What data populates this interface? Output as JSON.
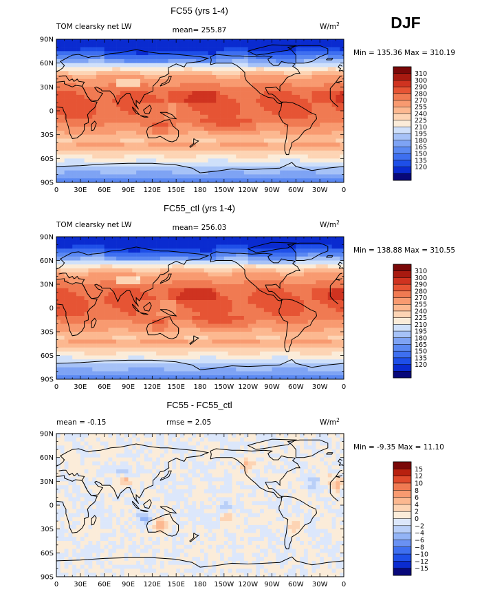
{
  "season": "DJF",
  "units": "W/m",
  "units_exp": "2",
  "lat_labels": [
    "90N",
    "60N",
    "30N",
    "0",
    "30S",
    "60S",
    "90S"
  ],
  "lon_labels": [
    "0",
    "30E",
    "60E",
    "90E",
    "120E",
    "150E",
    "180",
    "150W",
    "120W",
    "90W",
    "60W",
    "30W",
    "0"
  ],
  "colors": {
    "abs": [
      "#08087a",
      "#0a2bd0",
      "#1e4fe8",
      "#3e6ff0",
      "#5a88f2",
      "#7ea3f4",
      "#a6c2f7",
      "#cfe0fa",
      "#fbecd9",
      "#fdd4b4",
      "#fcb890",
      "#f89a70",
      "#f07a52",
      "#e65434",
      "#cf3320",
      "#a81a10",
      "#7a0808"
    ],
    "diff": [
      "#08087a",
      "#0a2bd0",
      "#1e4fe8",
      "#3e6ff0",
      "#6a92f3",
      "#93b4f6",
      "#b9cff8",
      "#dce7fb",
      "#fbecd9",
      "#fdd4b4",
      "#fcb890",
      "#f89a70",
      "#f07a52",
      "#e04a2c",
      "#b8200f",
      "#7a0808"
    ]
  },
  "panels": [
    {
      "title": "FC55 (yrs 1-4)",
      "left_label": "TOM clearsky net LW",
      "center_label": "mean= 255.87",
      "minmax": "Min = 135.36 Max = 310.19",
      "colorbar_labels": [
        "310",
        "300",
        "290",
        "280",
        "270",
        "255",
        "240",
        "225",
        "210",
        "195",
        "180",
        "165",
        "150",
        "135",
        "120"
      ]
    },
    {
      "title": "FC55_ctl (yrs 1-4)",
      "left_label": "TOM clearsky net LW",
      "center_label": "mean= 256.03",
      "minmax": "Min = 138.88 Max = 310.55",
      "colorbar_labels": [
        "310",
        "300",
        "290",
        "280",
        "270",
        "255",
        "240",
        "225",
        "210",
        "195",
        "180",
        "165",
        "150",
        "135",
        "120"
      ]
    },
    {
      "title": "FC55 - FC55_ctl",
      "left_label": "mean =   -0.15",
      "center_label": "rmse =    2.05",
      "minmax": "Min =  -9.35 Max =  11.10",
      "colorbar_labels": [
        "15",
        "12",
        "10",
        "8",
        "6",
        "4",
        "2",
        "0",
        "−2",
        "−4",
        "−6",
        "−8",
        "−10",
        "−12",
        "−15"
      ]
    }
  ],
  "chart_data": [
    {
      "type": "heatmap",
      "title": "FC55 (yrs 1-4)",
      "variable": "TOM clearsky net LW",
      "units": "W/m2",
      "season": "DJF",
      "mean": 255.87,
      "min": 135.36,
      "max": 310.19,
      "x_ticks": [
        "0",
        "30E",
        "60E",
        "90E",
        "120E",
        "150E",
        "180",
        "150W",
        "120W",
        "90W",
        "60W",
        "30W",
        "0"
      ],
      "y_ticks": [
        "90N",
        "60N",
        "30N",
        "0",
        "30S",
        "60S",
        "90S"
      ],
      "contour_levels": [
        120,
        135,
        150,
        165,
        180,
        195,
        210,
        225,
        240,
        255,
        270,
        280,
        290,
        300,
        310
      ]
    },
    {
      "type": "heatmap",
      "title": "FC55_ctl (yrs 1-4)",
      "variable": "TOM clearsky net LW",
      "units": "W/m2",
      "season": "DJF",
      "mean": 256.03,
      "min": 138.88,
      "max": 310.55,
      "x_ticks": [
        "0",
        "30E",
        "60E",
        "90E",
        "120E",
        "150E",
        "180",
        "150W",
        "120W",
        "90W",
        "60W",
        "30W",
        "0"
      ],
      "y_ticks": [
        "90N",
        "60N",
        "30N",
        "0",
        "30S",
        "60S",
        "90S"
      ],
      "contour_levels": [
        120,
        135,
        150,
        165,
        180,
        195,
        210,
        225,
        240,
        255,
        270,
        280,
        290,
        300,
        310
      ]
    },
    {
      "type": "heatmap",
      "title": "FC55 - FC55_ctl",
      "units": "W/m2",
      "season": "DJF",
      "mean": -0.15,
      "rmse": 2.05,
      "min": -9.35,
      "max": 11.1,
      "x_ticks": [
        "0",
        "30E",
        "60E",
        "90E",
        "120E",
        "150E",
        "180",
        "150W",
        "120W",
        "90W",
        "60W",
        "30W",
        "0"
      ],
      "y_ticks": [
        "90N",
        "60N",
        "30N",
        "0",
        "30S",
        "60S",
        "90S"
      ],
      "contour_levels": [
        -15,
        -12,
        -10,
        -8,
        -6,
        -4,
        -2,
        0,
        2,
        4,
        6,
        8,
        10,
        12,
        15
      ]
    }
  ]
}
